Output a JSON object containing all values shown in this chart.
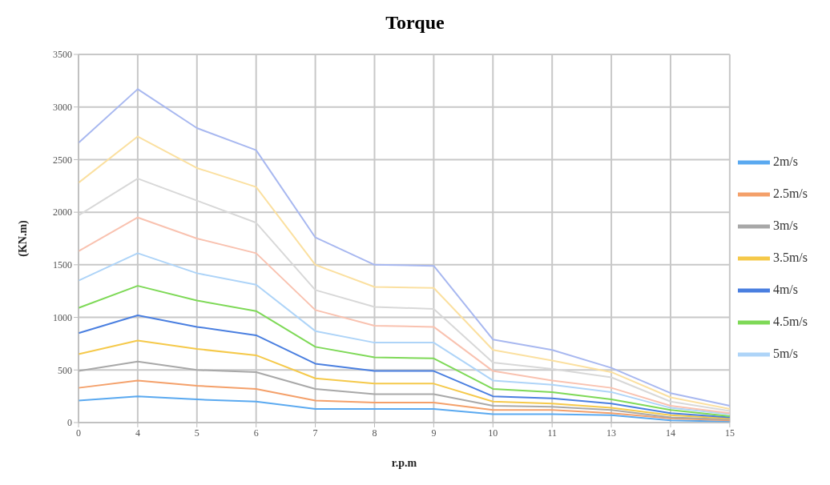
{
  "chart_data": {
    "type": "line",
    "title": "Torque",
    "xlabel": "r.p.m",
    "ylabel": "(KN.m)",
    "categories": [
      "0",
      "4",
      "5",
      "6",
      "7",
      "8",
      "9",
      "10",
      "11",
      "13",
      "14",
      "15"
    ],
    "ylim": [
      0,
      3500
    ],
    "yticks": [
      0,
      500,
      1000,
      1500,
      2000,
      2500,
      3000,
      3500
    ],
    "grid": true,
    "legend": "right",
    "marker": "none",
    "line_style": "solid",
    "series": [
      {
        "name": "2m/s",
        "color": "#5aa9f0",
        "values": [
          210,
          250,
          220,
          200,
          130,
          130,
          130,
          80,
          80,
          70,
          20,
          10
        ]
      },
      {
        "name": "2.5m/s",
        "color": "#f4a06a",
        "values": [
          330,
          400,
          350,
          320,
          210,
          190,
          190,
          120,
          120,
          90,
          40,
          20
        ]
      },
      {
        "name": "3m/s",
        "color": "#a8a8a8",
        "values": [
          490,
          580,
          500,
          480,
          320,
          270,
          270,
          160,
          150,
          120,
          50,
          30
        ]
      },
      {
        "name": "3.5m/s",
        "color": "#f5c94a",
        "values": [
          650,
          780,
          700,
          640,
          420,
          370,
          370,
          200,
          180,
          140,
          70,
          40
        ]
      },
      {
        "name": "4m/s",
        "color": "#4a7fe0",
        "values": [
          850,
          1020,
          910,
          830,
          560,
          490,
          490,
          250,
          230,
          180,
          90,
          50
        ]
      },
      {
        "name": "4.5m/s",
        "color": "#7ed957",
        "values": [
          1090,
          1300,
          1160,
          1060,
          720,
          620,
          610,
          320,
          290,
          220,
          120,
          60
        ]
      },
      {
        "name": "5m/s",
        "color": "#aed4f8",
        "values": [
          1350,
          1610,
          1420,
          1310,
          870,
          760,
          760,
          400,
          360,
          290,
          140,
          80
        ]
      },
      {
        "color": "#f9c2b0",
        "values": [
          1630,
          1950,
          1750,
          1610,
          1070,
          920,
          910,
          490,
          400,
          330,
          160,
          90
        ]
      },
      {
        "color": "#d8d8d8",
        "values": [
          1970,
          2320,
          2110,
          1900,
          1260,
          1100,
          1080,
          570,
          510,
          430,
          200,
          110
        ]
      },
      {
        "color": "#fbe0a0",
        "values": [
          2280,
          2720,
          2420,
          2240,
          1500,
          1290,
          1280,
          690,
          590,
          480,
          240,
          130
        ]
      },
      {
        "color": "#a8b8f0",
        "values": [
          2660,
          3170,
          2800,
          2590,
          1760,
          1500,
          1490,
          790,
          690,
          520,
          280,
          160
        ]
      }
    ]
  }
}
